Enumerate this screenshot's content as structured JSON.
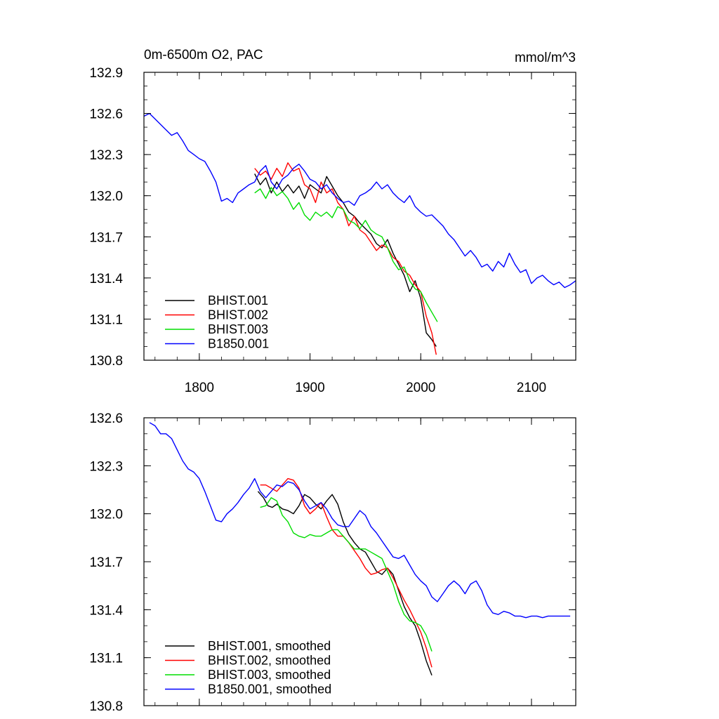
{
  "chart_data": [
    {
      "type": "line",
      "title": "0m-6500m O2, PAC",
      "units": "mmol/m^3",
      "xlim": [
        1750,
        2140
      ],
      "ylim": [
        130.8,
        132.9
      ],
      "xticks": [
        1800,
        1900,
        2000,
        2100
      ],
      "xtick_labels": [
        "1800",
        "1900",
        "2000",
        "2100"
      ],
      "yticks": [
        130.8,
        131.1,
        131.4,
        131.7,
        132.0,
        132.3,
        132.6,
        132.9
      ],
      "ytick_labels": [
        "130.8",
        "131.1",
        "131.4",
        "131.7",
        "132.0",
        "132.3",
        "132.6",
        "132.9"
      ],
      "legend_position": "bottom-left",
      "series": [
        {
          "name": "BHIST.001",
          "color": "#000000",
          "x": [
            1850,
            1855,
            1860,
            1865,
            1870,
            1875,
            1880,
            1885,
            1890,
            1895,
            1900,
            1905,
            1910,
            1915,
            1920,
            1925,
            1930,
            1935,
            1940,
            1945,
            1950,
            1955,
            1960,
            1965,
            1970,
            1975,
            1980,
            1985,
            1990,
            1995,
            2000,
            2005,
            2010,
            2014
          ],
          "y": [
            132.16,
            132.08,
            132.13,
            132.02,
            132.1,
            132.03,
            132.08,
            132.02,
            132.07,
            131.98,
            132.08,
            132.05,
            132.02,
            132.14,
            132.07,
            132.0,
            131.95,
            131.88,
            131.85,
            131.8,
            131.76,
            131.72,
            131.65,
            131.62,
            131.68,
            131.58,
            131.5,
            131.42,
            131.3,
            131.38,
            131.25,
            131.0,
            130.95,
            130.9
          ]
        },
        {
          "name": "BHIST.002",
          "color": "#ff0000",
          "x": [
            1850,
            1855,
            1860,
            1865,
            1870,
            1875,
            1880,
            1885,
            1890,
            1895,
            1900,
            1905,
            1910,
            1915,
            1920,
            1925,
            1930,
            1935,
            1940,
            1945,
            1950,
            1955,
            1960,
            1965,
            1970,
            1975,
            1980,
            1985,
            1990,
            1995,
            2000,
            2005,
            2010,
            2014
          ],
          "y": [
            132.2,
            132.15,
            132.18,
            132.12,
            132.2,
            132.14,
            132.24,
            132.18,
            132.2,
            132.08,
            132.05,
            131.95,
            132.1,
            132.02,
            132.05,
            131.95,
            131.9,
            131.78,
            131.85,
            131.75,
            131.72,
            131.66,
            131.6,
            131.64,
            131.62,
            131.55,
            131.52,
            131.45,
            131.42,
            131.35,
            131.3,
            131.12,
            131.0,
            130.84
          ]
        },
        {
          "name": "BHIST.003",
          "color": "#00dd00",
          "x": [
            1850,
            1855,
            1860,
            1865,
            1870,
            1875,
            1880,
            1885,
            1890,
            1895,
            1900,
            1905,
            1910,
            1915,
            1920,
            1925,
            1930,
            1935,
            1940,
            1945,
            1950,
            1955,
            1960,
            1965,
            1970,
            1975,
            1980,
            1985,
            1990,
            1995,
            2000,
            2005,
            2010,
            2015
          ],
          "y": [
            132.02,
            132.05,
            131.98,
            132.06,
            132.0,
            132.03,
            131.98,
            131.9,
            131.95,
            131.86,
            131.82,
            131.88,
            131.85,
            131.88,
            131.84,
            131.92,
            131.9,
            131.82,
            131.8,
            131.76,
            131.82,
            131.75,
            131.72,
            131.7,
            131.62,
            131.52,
            131.46,
            131.48,
            131.38,
            131.32,
            131.3,
            131.22,
            131.15,
            131.08
          ]
        },
        {
          "name": "B1850.001",
          "color": "#0000ff",
          "x": [
            1750,
            1755,
            1760,
            1765,
            1770,
            1775,
            1780,
            1785,
            1790,
            1795,
            1800,
            1805,
            1810,
            1815,
            1820,
            1825,
            1830,
            1835,
            1840,
            1845,
            1850,
            1855,
            1860,
            1865,
            1870,
            1875,
            1880,
            1885,
            1890,
            1895,
            1900,
            1905,
            1910,
            1915,
            1920,
            1925,
            1930,
            1935,
            1940,
            1945,
            1950,
            1955,
            1960,
            1965,
            1970,
            1975,
            1980,
            1985,
            1990,
            1995,
            2000,
            2005,
            2010,
            2015,
            2020,
            2025,
            2030,
            2035,
            2040,
            2045,
            2050,
            2055,
            2060,
            2065,
            2070,
            2075,
            2080,
            2085,
            2090,
            2095,
            2100,
            2105,
            2110,
            2115,
            2120,
            2125,
            2130,
            2135,
            2140
          ],
          "y": [
            132.58,
            132.6,
            132.56,
            132.52,
            132.48,
            132.44,
            132.46,
            132.4,
            132.33,
            132.3,
            132.27,
            132.25,
            132.18,
            132.1,
            131.96,
            131.98,
            131.95,
            132.02,
            132.05,
            132.08,
            132.1,
            132.18,
            132.22,
            132.1,
            132.05,
            132.12,
            132.15,
            132.2,
            132.23,
            132.18,
            132.12,
            132.1,
            132.05,
            132.08,
            132.02,
            131.98,
            131.95,
            131.96,
            131.93,
            132.0,
            132.02,
            132.05,
            132.1,
            132.05,
            132.08,
            132.02,
            131.98,
            131.95,
            132.0,
            131.92,
            131.88,
            131.85,
            131.86,
            131.82,
            131.78,
            131.72,
            131.68,
            131.62,
            131.56,
            131.6,
            131.55,
            131.48,
            131.5,
            131.45,
            131.52,
            131.48,
            131.58,
            131.5,
            131.44,
            131.46,
            131.36,
            131.4,
            131.42,
            131.38,
            131.35,
            131.37,
            131.33,
            131.35,
            131.38
          ]
        }
      ]
    },
    {
      "type": "line",
      "title": "",
      "xlim": [
        1750,
        2140
      ],
      "ylim": [
        130.8,
        132.6
      ],
      "xticks": [
        1800,
        1900,
        2000,
        2100
      ],
      "yticks": [
        130.8,
        131.1,
        131.4,
        131.7,
        132.0,
        132.3,
        132.6
      ],
      "ytick_labels": [
        "130.8",
        "131.1",
        "131.4",
        "131.7",
        "132.0",
        "132.3",
        "132.6"
      ],
      "legend_position": "bottom-left",
      "series": [
        {
          "name": "BHIST.001, smoothed",
          "color": "#000000",
          "x": [
            1853,
            1858,
            1862,
            1866,
            1870,
            1875,
            1880,
            1885,
            1890,
            1895,
            1900,
            1905,
            1910,
            1915,
            1920,
            1925,
            1930,
            1935,
            1940,
            1945,
            1950,
            1955,
            1960,
            1965,
            1970,
            1975,
            1980,
            1985,
            1990,
            1995,
            2000,
            2005,
            2010
          ],
          "y": [
            132.14,
            132.1,
            132.05,
            132.04,
            132.06,
            132.03,
            132.02,
            132.0,
            132.05,
            132.12,
            132.1,
            132.06,
            132.03,
            132.08,
            132.12,
            132.06,
            131.95,
            131.87,
            131.82,
            131.78,
            131.76,
            131.7,
            131.64,
            131.62,
            131.66,
            131.62,
            131.52,
            131.42,
            131.35,
            131.3,
            131.2,
            131.08,
            130.99
          ]
        },
        {
          "name": "BHIST.002, smoothed",
          "color": "#ff0000",
          "x": [
            1855,
            1860,
            1865,
            1870,
            1875,
            1880,
            1885,
            1890,
            1895,
            1900,
            1905,
            1910,
            1915,
            1920,
            1925,
            1930,
            1935,
            1940,
            1945,
            1950,
            1955,
            1960,
            1965,
            1970,
            1975,
            1980,
            1985,
            1990,
            1995,
            2000,
            2005,
            2010
          ],
          "y": [
            132.18,
            132.18,
            132.16,
            132.14,
            132.18,
            132.22,
            132.21,
            132.16,
            132.05,
            132.0,
            132.03,
            132.07,
            131.98,
            131.9,
            131.86,
            131.86,
            131.82,
            131.77,
            131.72,
            131.66,
            131.62,
            131.63,
            131.65,
            131.66,
            131.6,
            131.53,
            131.46,
            131.4,
            131.33,
            131.26,
            131.16,
            131.04
          ]
        },
        {
          "name": "BHIST.003, smoothed",
          "color": "#00dd00",
          "x": [
            1855,
            1860,
            1865,
            1870,
            1875,
            1880,
            1885,
            1890,
            1895,
            1900,
            1905,
            1910,
            1915,
            1920,
            1925,
            1930,
            1935,
            1940,
            1945,
            1950,
            1955,
            1960,
            1965,
            1970,
            1975,
            1980,
            1985,
            1990,
            1995,
            2000,
            2005,
            2010
          ],
          "y": [
            132.04,
            132.05,
            132.1,
            132.08,
            131.99,
            131.95,
            131.88,
            131.86,
            131.85,
            131.87,
            131.86,
            131.86,
            131.88,
            131.9,
            131.9,
            131.86,
            131.82,
            131.78,
            131.78,
            131.78,
            131.76,
            131.74,
            131.72,
            131.64,
            131.56,
            131.45,
            131.37,
            131.33,
            131.32,
            131.3,
            131.24,
            131.14
          ]
        },
        {
          "name": "B1850.001, smoothed",
          "color": "#0000ff",
          "x": [
            1755,
            1760,
            1765,
            1770,
            1775,
            1780,
            1785,
            1790,
            1795,
            1800,
            1805,
            1810,
            1815,
            1820,
            1825,
            1830,
            1835,
            1840,
            1845,
            1850,
            1855,
            1860,
            1865,
            1870,
            1875,
            1880,
            1885,
            1890,
            1895,
            1900,
            1905,
            1910,
            1915,
            1920,
            1925,
            1930,
            1935,
            1940,
            1945,
            1950,
            1955,
            1960,
            1965,
            1970,
            1975,
            1980,
            1985,
            1990,
            1995,
            2000,
            2005,
            2010,
            2015,
            2020,
            2025,
            2030,
            2035,
            2040,
            2045,
            2050,
            2055,
            2060,
            2065,
            2070,
            2075,
            2080,
            2085,
            2090,
            2095,
            2100,
            2105,
            2110,
            2115,
            2120,
            2125,
            2130,
            2135
          ],
          "y": [
            132.57,
            132.55,
            132.5,
            132.5,
            132.47,
            132.4,
            132.33,
            132.28,
            132.26,
            132.22,
            132.14,
            132.05,
            131.96,
            131.95,
            132.0,
            132.03,
            132.07,
            132.12,
            132.16,
            132.22,
            132.14,
            132.1,
            132.14,
            132.18,
            132.17,
            132.2,
            132.19,
            132.15,
            132.08,
            132.03,
            132.05,
            132.07,
            132.03,
            131.97,
            131.93,
            131.92,
            131.92,
            131.97,
            132.02,
            131.99,
            131.92,
            131.88,
            131.83,
            131.78,
            131.73,
            131.72,
            131.74,
            131.68,
            131.62,
            131.58,
            131.55,
            131.48,
            131.45,
            131.5,
            131.55,
            131.58,
            131.55,
            131.5,
            131.56,
            131.58,
            131.52,
            131.43,
            131.38,
            131.37,
            131.39,
            131.38,
            131.36,
            131.36,
            131.35,
            131.36,
            131.36,
            131.35,
            131.36,
            131.36,
            131.36,
            131.36,
            131.36
          ]
        }
      ]
    }
  ]
}
